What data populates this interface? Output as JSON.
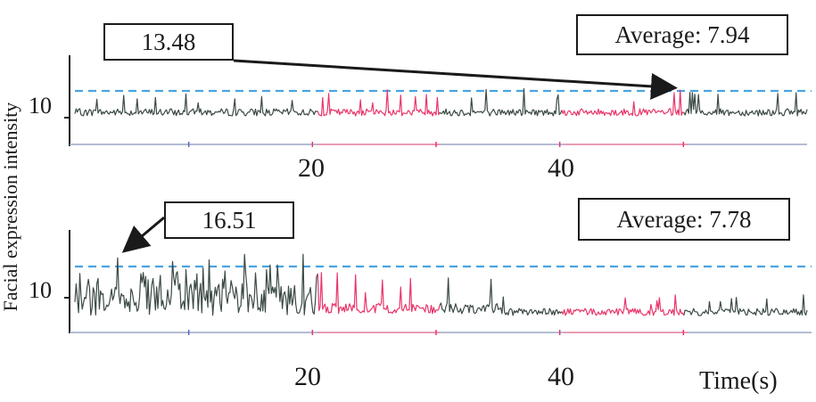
{
  "chart_data": [
    {
      "type": "line",
      "panel": "top",
      "x": {
        "ticks": [
          "20",
          "40"
        ],
        "range_s": [
          0,
          60
        ]
      },
      "y": {
        "ticks": [
          "10"
        ]
      },
      "peak_label": "13.48",
      "average_label": "Average: 7.94",
      "average_value": 7.94,
      "peak_value": 13.48,
      "baseline_level": 10,
      "colored_segments_s": [
        [
          20,
          30
        ],
        [
          40,
          50
        ]
      ],
      "colors": {
        "trace": "#3b4a44",
        "highlight": "#e8366a",
        "reference": "#4aa3e0"
      }
    },
    {
      "type": "line",
      "panel": "bottom",
      "x": {
        "ticks": [
          "20",
          "40"
        ],
        "range_s": [
          0,
          60
        ]
      },
      "y": {
        "ticks": [
          "10"
        ]
      },
      "peak_label": "16.51",
      "average_label": "Average: 7.78",
      "average_value": 7.78,
      "peak_value": 16.51,
      "baseline_level": 10,
      "colored_segments_s": [
        [
          20,
          30
        ],
        [
          40,
          50
        ]
      ],
      "colors": {
        "trace": "#3b4a44",
        "highlight": "#e8366a",
        "reference": "#4aa3e0"
      }
    }
  ],
  "labels": {
    "y_title": "Facial expression intensity",
    "x_title": "Time(s)"
  }
}
